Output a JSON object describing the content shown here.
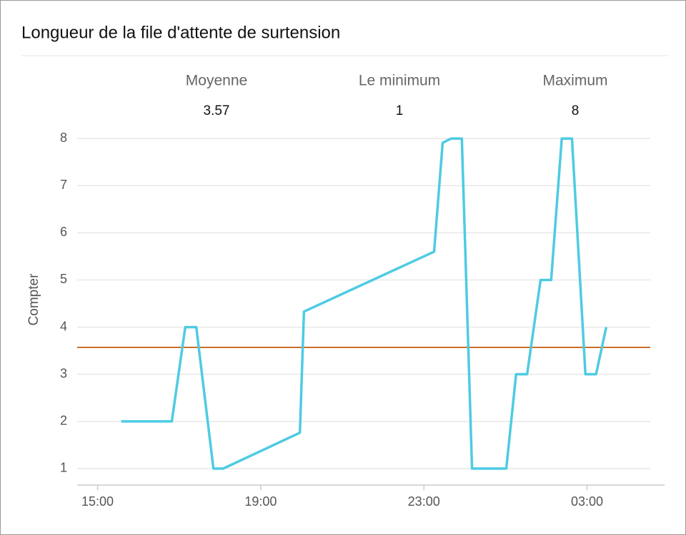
{
  "chart_data": {
    "type": "line",
    "title": "Longueur de la file d'attente de surtension",
    "summary": [
      {
        "label": "Moyenne",
        "value": 3.57
      },
      {
        "label": "Le minimum",
        "value": 1
      },
      {
        "label": "Maximum",
        "value": 8
      }
    ],
    "y_label": "Compter",
    "x": [
      15.58,
      16.82,
      17.15,
      17.42,
      17.84,
      18.08,
      19.96,
      20.06,
      23.25,
      23.46,
      23.67,
      23.93,
      24.18,
      25.02,
      25.26,
      25.53,
      25.86,
      26.12,
      26.38,
      26.63,
      26.96,
      27.22,
      27.47
    ],
    "series": [
      {
        "color": "#4ecbe3",
        "values": [
          2,
          2,
          4,
          4,
          1,
          1,
          1.76,
          4.33,
          5.6,
          7.91,
          8,
          8,
          1,
          1,
          3,
          3,
          5,
          5,
          8,
          8,
          3,
          3,
          4
        ]
      }
    ],
    "mean_line_color": "#c8702a",
    "xlim": [
      14.5,
      28.9
    ],
    "xticks": [
      {
        "value": 15,
        "label": "15:00"
      },
      {
        "value": 19,
        "label": "19:00"
      },
      {
        "value": 23,
        "label": "23:00"
      },
      {
        "value": 27,
        "label": "03:00"
      }
    ],
    "ylim": [
      0.65,
      8.2
    ],
    "yticks": [
      1,
      2,
      3,
      4,
      5,
      6,
      7,
      8
    ],
    "grid": true
  }
}
